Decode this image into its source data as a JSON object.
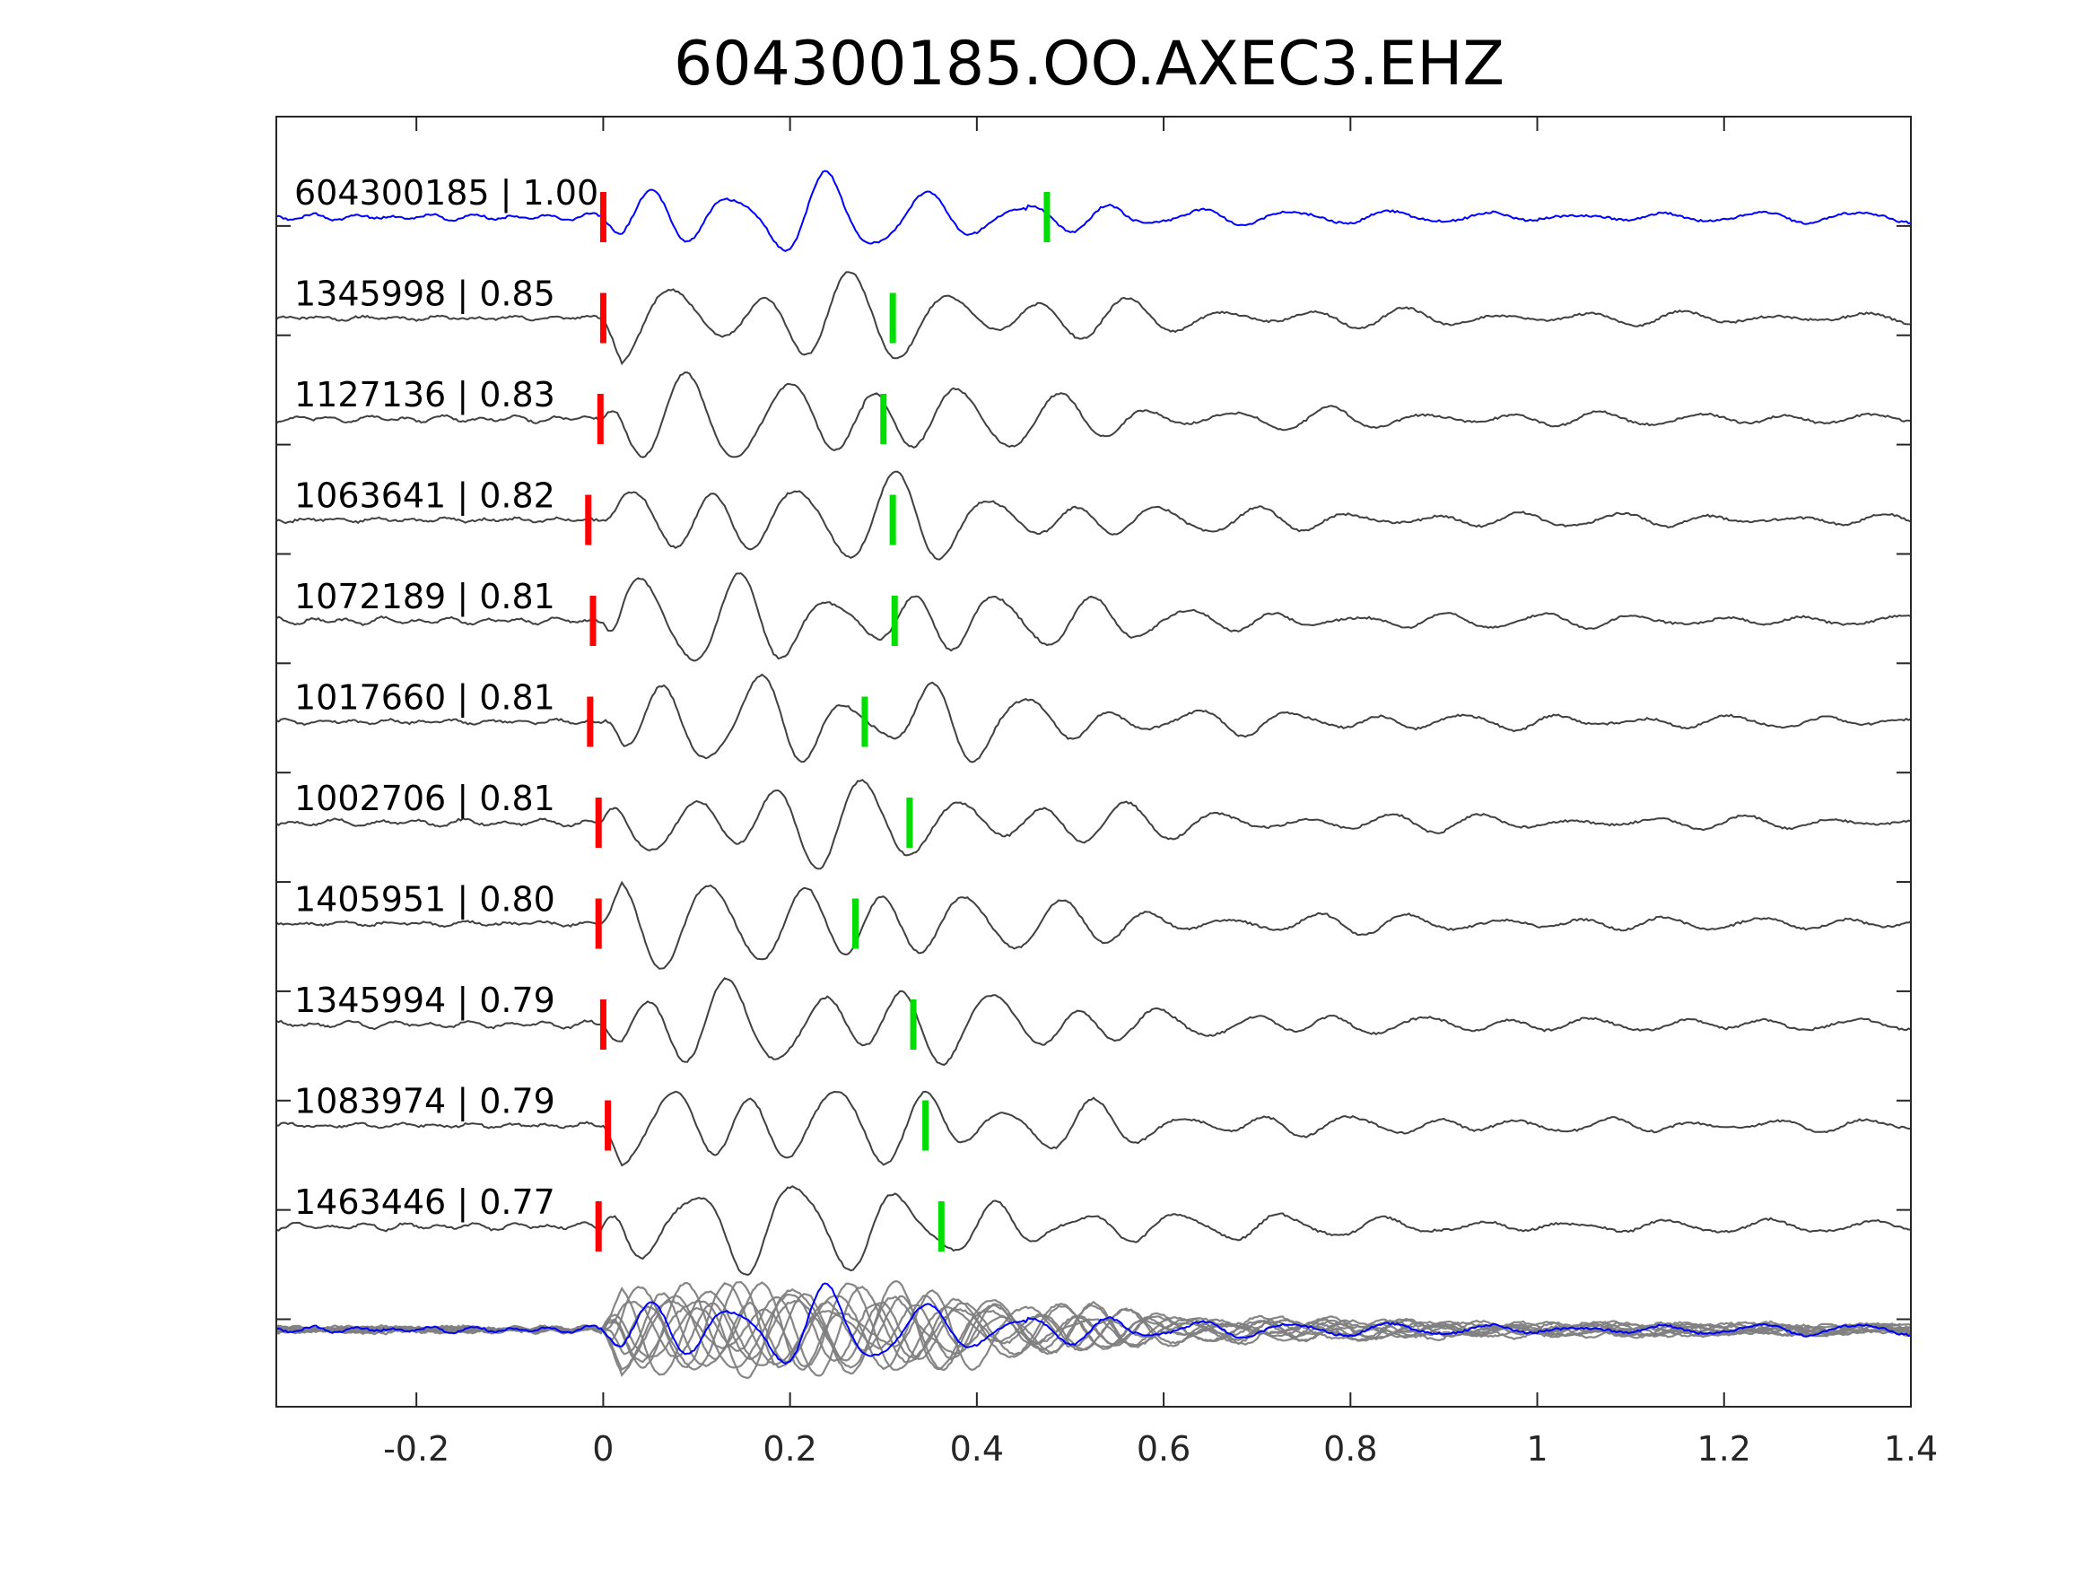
{
  "chart_data": {
    "type": "line",
    "title": "604300185.OO.AXEC3.EHZ",
    "xlabel": "",
    "ylabel": "",
    "xlim": [
      -0.35,
      1.4
    ],
    "xticks": [
      -0.2,
      0,
      0.2,
      0.4,
      0.6,
      0.8,
      1,
      1.2,
      1.4
    ],
    "xtick_labels": [
      "-0.2",
      "0",
      "0.2",
      "0.4",
      "0.6",
      "0.8",
      "1",
      "1.2",
      "1.4"
    ],
    "grid": false,
    "colors": {
      "template": "#0000ff",
      "match": "#404040",
      "stack": "#808080",
      "p_pick": "#ff0000",
      "s_pick": "#00dd00",
      "axes": "#262626"
    },
    "traces": [
      {
        "label": "604300185 | 1.00",
        "p_pick": 0.0,
        "s_pick": 0.475,
        "template": true
      },
      {
        "label": "1345998 | 0.85",
        "p_pick": 0.0,
        "s_pick": 0.31
      },
      {
        "label": "1127136 | 0.83",
        "p_pick": -0.003,
        "s_pick": 0.3
      },
      {
        "label": "1063641 | 0.82",
        "p_pick": -0.016,
        "s_pick": 0.31
      },
      {
        "label": "1072189 | 0.81",
        "p_pick": -0.011,
        "s_pick": 0.312
      },
      {
        "label": "1017660 | 0.81",
        "p_pick": -0.014,
        "s_pick": 0.28
      },
      {
        "label": "1002706 | 0.81",
        "p_pick": -0.005,
        "s_pick": 0.328
      },
      {
        "label": "1405951 | 0.80",
        "p_pick": -0.005,
        "s_pick": 0.27
      },
      {
        "label": "1345994 | 0.79",
        "p_pick": 0.0,
        "s_pick": 0.332
      },
      {
        "label": "1083974 | 0.79",
        "p_pick": 0.005,
        "s_pick": 0.345
      },
      {
        "label": "1463446 | 0.77",
        "p_pick": -0.005,
        "s_pick": 0.362
      }
    ]
  }
}
